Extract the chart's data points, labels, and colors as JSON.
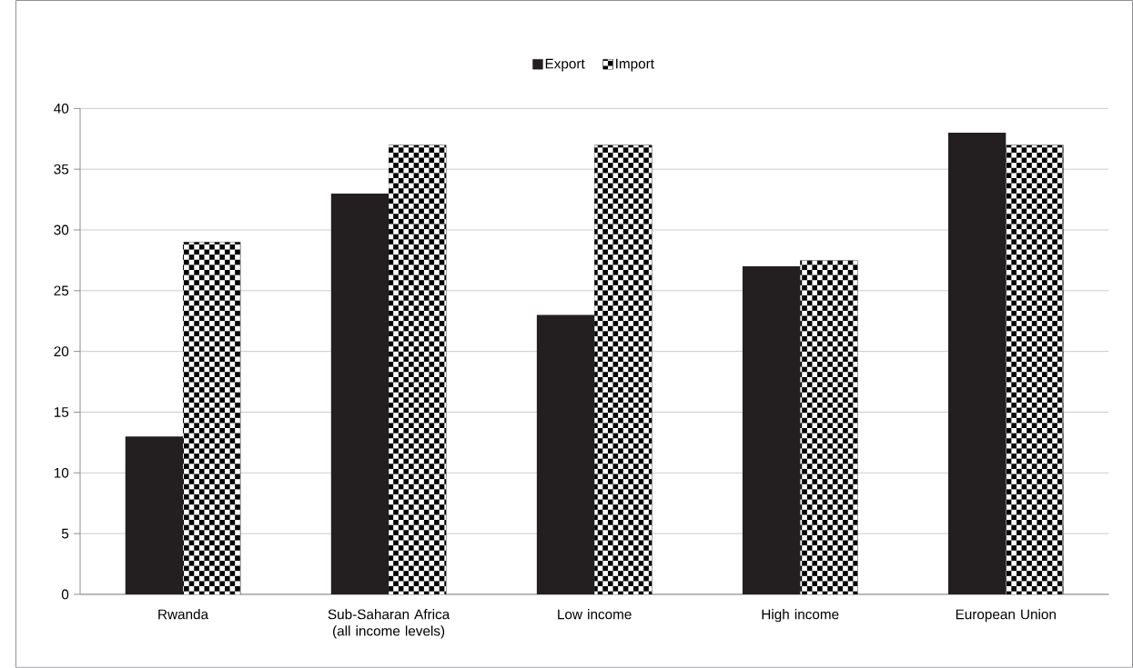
{
  "chart_data": {
    "type": "bar",
    "categories": [
      "Rwanda",
      "Sub-Saharan Africa (all income levels)",
      "Low income",
      "High income",
      "European Union"
    ],
    "series": [
      {
        "name": "Export",
        "color": "#231f20",
        "values": [
          13,
          33,
          23,
          27,
          38
        ]
      },
      {
        "name": "Import",
        "color": "#000000",
        "values": [
          29,
          37,
          37,
          27.5,
          37
        ]
      }
    ],
    "ylim": [
      0,
      40
    ],
    "yticks": [
      0,
      5,
      10,
      15,
      20,
      25,
      30,
      35,
      40
    ],
    "grid": "y",
    "legend": "top"
  }
}
